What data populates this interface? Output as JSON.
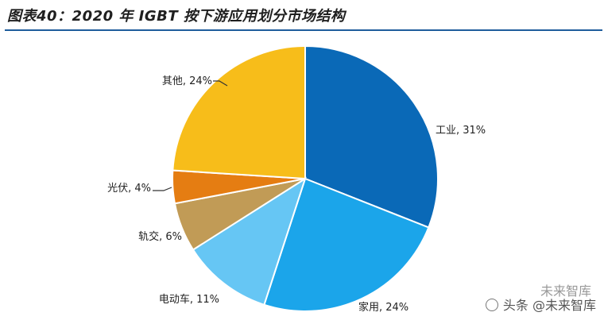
{
  "title": "图表40：2020 年 IGBT 按下游应用划分市场结构",
  "watermark": {
    "brand_top": "未来智库",
    "text": "头条 @未来智库"
  },
  "chart_data": {
    "type": "pie",
    "title": "图表40：2020 年 IGBT 按下游应用划分市场结构",
    "slices": [
      {
        "label": "工业",
        "value": 31,
        "display": "工业, 31%",
        "color": "#0a69b7"
      },
      {
        "label": "家用",
        "value": 24,
        "display": "家用, 24%",
        "color": "#1ba5ea"
      },
      {
        "label": "电动车",
        "value": 11,
        "display": "电动车, 11%",
        "color": "#66c6f4"
      },
      {
        "label": "轨交",
        "value": 6,
        "display": "轨交, 6%",
        "color": "#c19b56"
      },
      {
        "label": "光伏",
        "value": 4,
        "display": "光伏, 4%",
        "color": "#e57d12"
      },
      {
        "label": "其他",
        "value": 24,
        "display": "其他, 24%",
        "color": "#f7bd1a"
      }
    ]
  }
}
